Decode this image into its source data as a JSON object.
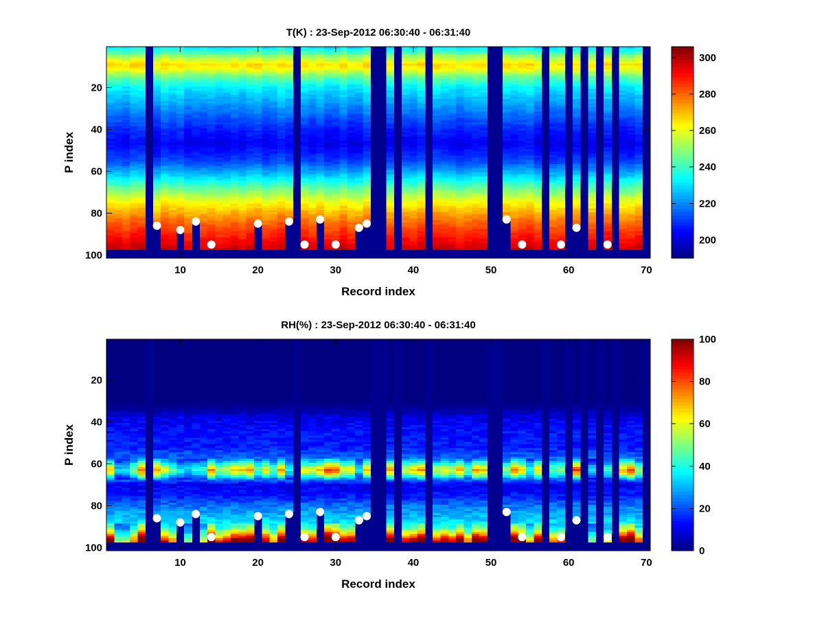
{
  "chart_data": [
    {
      "type": "heatmap",
      "title": "T(K) : 23-Sep-2012 06:30:40 - 06:31:40",
      "xlabel": "Record index",
      "ylabel": "P index",
      "xlim": [
        0.5,
        70.5
      ],
      "ylim": [
        0.5,
        101.5
      ],
      "y_reversed": true,
      "xticks": [
        10,
        20,
        30,
        40,
        50,
        60,
        70
      ],
      "yticks": [
        20,
        40,
        60,
        80,
        100
      ],
      "colormap": "jet",
      "clim": [
        190,
        306
      ],
      "colorbar_ticks": [
        200,
        220,
        240,
        260,
        280,
        300
      ],
      "profile_nodes": [
        [
          1,
          232
        ],
        [
          3,
          240
        ],
        [
          6,
          255
        ],
        [
          9,
          266
        ],
        [
          11,
          262
        ],
        [
          15,
          245
        ],
        [
          20,
          232
        ],
        [
          30,
          220
        ],
        [
          40,
          208
        ],
        [
          47,
          203
        ],
        [
          55,
          212
        ],
        [
          62,
          228
        ],
        [
          68,
          245
        ],
        [
          74,
          260
        ],
        [
          80,
          272
        ],
        [
          86,
          282
        ],
        [
          92,
          290
        ],
        [
          97,
          297
        ]
      ]
    },
    {
      "type": "heatmap",
      "title": "RH(%) : 23-Sep-2012 06:30:40 - 06:31:40",
      "xlabel": "Record index",
      "ylabel": "P index",
      "xlim": [
        0.5,
        70.5
      ],
      "ylim": [
        0.5,
        101.5
      ],
      "y_reversed": true,
      "xticks": [
        10,
        20,
        30,
        40,
        50,
        60,
        70
      ],
      "yticks": [
        20,
        40,
        60,
        80,
        100
      ],
      "colormap": "jet",
      "clim": [
        0,
        100
      ],
      "colorbar_ticks": [
        0,
        20,
        40,
        60,
        80,
        100
      ],
      "profile_nodes": [
        [
          1,
          0
        ],
        [
          30,
          0
        ],
        [
          34,
          3
        ],
        [
          38,
          10
        ],
        [
          45,
          14
        ],
        [
          52,
          15
        ],
        [
          58,
          24
        ],
        [
          61,
          45
        ],
        [
          63,
          55
        ],
        [
          65,
          45
        ],
        [
          67,
          25
        ],
        [
          70,
          11
        ],
        [
          75,
          14
        ],
        [
          80,
          24
        ],
        [
          86,
          32
        ],
        [
          90,
          38
        ],
        [
          93,
          55
        ],
        [
          96,
          78
        ],
        [
          97,
          85
        ]
      ]
    }
  ],
  "records": {
    "count": 70,
    "data_levels": 97,
    "missing_records": [
      6,
      25,
      35,
      36,
      38,
      42,
      50,
      51,
      57,
      60,
      62,
      64,
      66,
      70
    ],
    "surface_markers": [
      [
        7,
        86
      ],
      [
        10,
        88
      ],
      [
        12,
        84
      ],
      [
        14,
        95
      ],
      [
        20,
        85
      ],
      [
        24,
        84
      ],
      [
        26,
        95
      ],
      [
        28,
        83
      ],
      [
        30,
        95
      ],
      [
        33,
        87
      ],
      [
        34,
        85
      ],
      [
        52,
        83
      ],
      [
        54,
        95
      ],
      [
        59,
        95
      ],
      [
        61,
        87
      ],
      [
        65,
        95
      ]
    ]
  },
  "colors": {
    "missing": "#00008F",
    "marker": "#FFFFFF"
  }
}
